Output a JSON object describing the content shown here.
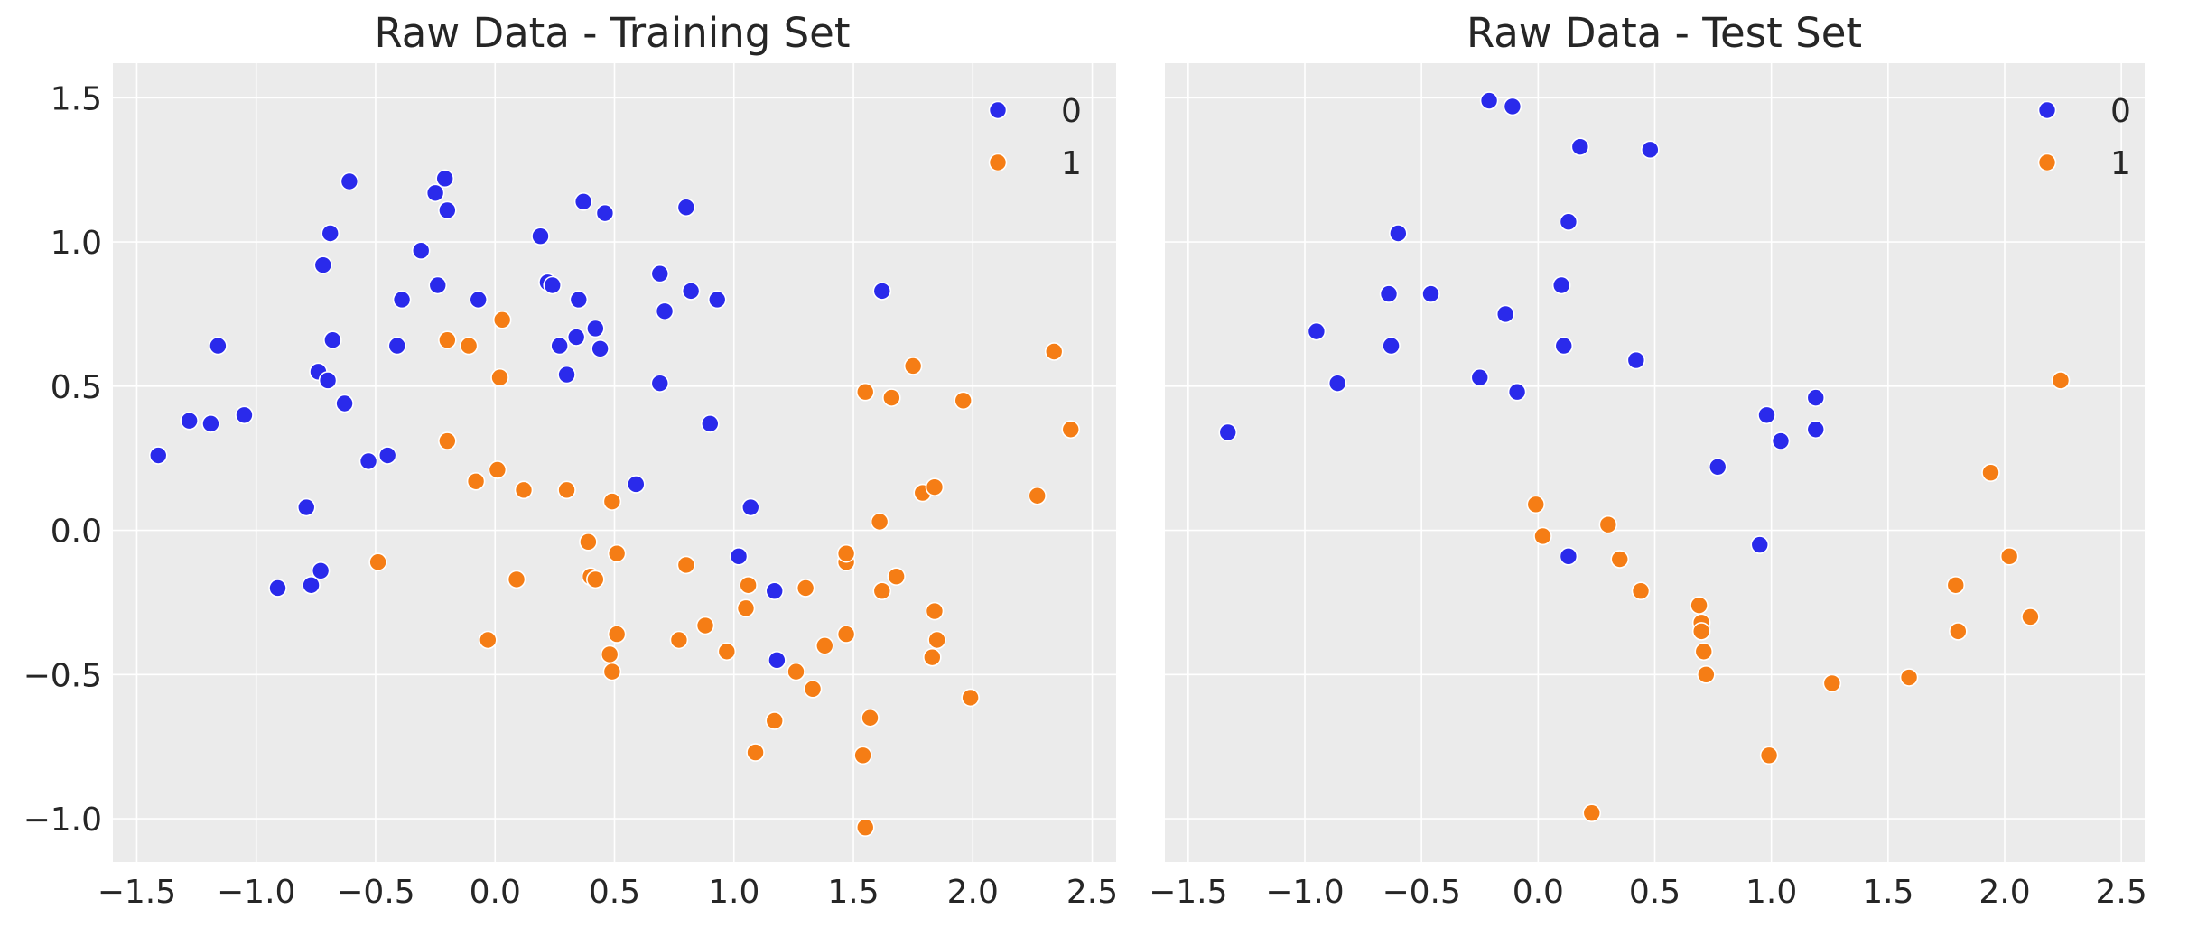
{
  "colors": {
    "plot_background": "#ebebeb",
    "grid": "#ffffff",
    "class_0": "#2a2aeb",
    "class_1": "#f57d15",
    "marker_edge": "#ffffff",
    "text": "#262626"
  },
  "chart_data": [
    {
      "type": "scatter",
      "title": "Raw Data - Training Set",
      "xlabel": "",
      "ylabel": "",
      "xlim": [
        -1.6,
        2.6
      ],
      "ylim": [
        -1.15,
        1.62
      ],
      "xticks": [
        -1.5,
        -1.0,
        -0.5,
        0.0,
        0.5,
        1.0,
        1.5,
        2.0,
        2.5
      ],
      "xtick_labels": [
        "−1.5",
        "−1.0",
        "−0.5",
        "0.0",
        "0.5",
        "1.0",
        "1.5",
        "2.0",
        "2.5"
      ],
      "yticks": [
        -1.0,
        -0.5,
        0.0,
        0.5,
        1.0,
        1.5
      ],
      "ytick_labels": [
        "−1.0",
        "−0.5",
        "0.0",
        "0.5",
        "1.0",
        "1.5"
      ],
      "grid": true,
      "legend_position": "top-right",
      "series": [
        {
          "name": "0",
          "color": "#2a2aeb",
          "points": [
            [
              -1.41,
              0.26
            ],
            [
              -1.28,
              0.38
            ],
            [
              -1.19,
              0.37
            ],
            [
              -1.16,
              0.64
            ],
            [
              -1.05,
              0.4
            ],
            [
              -0.91,
              -0.2
            ],
            [
              -0.79,
              0.08
            ],
            [
              -0.77,
              -0.19
            ],
            [
              -0.74,
              0.55
            ],
            [
              -0.73,
              -0.14
            ],
            [
              -0.72,
              0.92
            ],
            [
              -0.7,
              0.52
            ],
            [
              -0.69,
              1.03
            ],
            [
              -0.68,
              0.66
            ],
            [
              -0.63,
              0.44
            ],
            [
              -0.61,
              1.21
            ],
            [
              -0.53,
              0.24
            ],
            [
              -0.45,
              0.26
            ],
            [
              -0.41,
              0.64
            ],
            [
              -0.39,
              0.8
            ],
            [
              -0.31,
              0.97
            ],
            [
              -0.25,
              1.17
            ],
            [
              -0.24,
              0.85
            ],
            [
              -0.21,
              1.22
            ],
            [
              -0.2,
              1.11
            ],
            [
              -0.07,
              0.8
            ],
            [
              0.19,
              1.02
            ],
            [
              0.22,
              0.86
            ],
            [
              0.24,
              0.85
            ],
            [
              0.27,
              0.64
            ],
            [
              0.3,
              0.54
            ],
            [
              0.34,
              0.67
            ],
            [
              0.35,
              0.8
            ],
            [
              0.37,
              1.14
            ],
            [
              0.42,
              0.7
            ],
            [
              0.44,
              0.63
            ],
            [
              0.46,
              1.1
            ],
            [
              0.59,
              0.16
            ],
            [
              0.69,
              0.89
            ],
            [
              0.69,
              0.51
            ],
            [
              0.71,
              0.76
            ],
            [
              0.8,
              1.12
            ],
            [
              0.82,
              0.83
            ],
            [
              0.9,
              0.37
            ],
            [
              0.93,
              0.8
            ],
            [
              1.02,
              -0.09
            ],
            [
              1.07,
              0.08
            ],
            [
              1.17,
              -0.21
            ],
            [
              1.18,
              -0.45
            ],
            [
              1.62,
              0.83
            ]
          ]
        },
        {
          "name": "1",
          "color": "#f57d15",
          "points": [
            [
              -0.49,
              -0.11
            ],
            [
              -0.2,
              0.66
            ],
            [
              -0.2,
              0.31
            ],
            [
              -0.11,
              0.64
            ],
            [
              -0.08,
              0.17
            ],
            [
              -0.03,
              -0.38
            ],
            [
              0.01,
              0.21
            ],
            [
              0.02,
              0.53
            ],
            [
              0.03,
              0.73
            ],
            [
              0.09,
              -0.17
            ],
            [
              0.12,
              0.14
            ],
            [
              0.3,
              0.14
            ],
            [
              0.39,
              -0.04
            ],
            [
              0.4,
              -0.16
            ],
            [
              0.42,
              -0.17
            ],
            [
              0.48,
              -0.43
            ],
            [
              0.49,
              0.1
            ],
            [
              0.49,
              -0.49
            ],
            [
              0.51,
              -0.08
            ],
            [
              0.51,
              -0.36
            ],
            [
              0.77,
              -0.38
            ],
            [
              0.8,
              -0.12
            ],
            [
              0.88,
              -0.33
            ],
            [
              0.97,
              -0.42
            ],
            [
              1.05,
              -0.27
            ],
            [
              1.06,
              -0.19
            ],
            [
              1.09,
              -0.77
            ],
            [
              1.17,
              -0.66
            ],
            [
              1.26,
              -0.49
            ],
            [
              1.3,
              -0.2
            ],
            [
              1.33,
              -0.55
            ],
            [
              1.38,
              -0.4
            ],
            [
              1.47,
              -0.11
            ],
            [
              1.47,
              -0.08
            ],
            [
              1.47,
              -0.36
            ],
            [
              1.54,
              -0.78
            ],
            [
              1.55,
              0.48
            ],
            [
              1.55,
              -1.03
            ],
            [
              1.57,
              -0.65
            ],
            [
              1.61,
              0.03
            ],
            [
              1.62,
              -0.21
            ],
            [
              1.66,
              0.46
            ],
            [
              1.68,
              -0.16
            ],
            [
              1.75,
              0.57
            ],
            [
              1.79,
              0.13
            ],
            [
              1.83,
              -0.44
            ],
            [
              1.84,
              0.15
            ],
            [
              1.84,
              -0.28
            ],
            [
              1.85,
              -0.38
            ],
            [
              1.96,
              0.45
            ],
            [
              1.99,
              -0.58
            ],
            [
              2.27,
              0.12
            ],
            [
              2.34,
              0.62
            ],
            [
              2.41,
              0.35
            ]
          ]
        }
      ]
    },
    {
      "type": "scatter",
      "title": "Raw Data - Test Set",
      "xlabel": "",
      "ylabel": "",
      "xlim": [
        -1.6,
        2.6
      ],
      "ylim": [
        -1.15,
        1.62
      ],
      "xticks": [
        -1.5,
        -1.0,
        -0.5,
        0.0,
        0.5,
        1.0,
        1.5,
        2.0,
        2.5
      ],
      "xtick_labels": [
        "−1.5",
        "−1.0",
        "−0.5",
        "0.0",
        "0.5",
        "1.0",
        "1.5",
        "2.0",
        "2.5"
      ],
      "yticks": [
        -1.0,
        -0.5,
        0.0,
        0.5,
        1.0,
        1.5
      ],
      "ytick_labels": [],
      "grid": true,
      "legend_position": "top-right",
      "series": [
        {
          "name": "0",
          "color": "#2a2aeb",
          "points": [
            [
              -1.33,
              0.34
            ],
            [
              -0.95,
              0.69
            ],
            [
              -0.86,
              0.51
            ],
            [
              -0.64,
              0.82
            ],
            [
              -0.63,
              0.64
            ],
            [
              -0.6,
              1.03
            ],
            [
              -0.46,
              0.82
            ],
            [
              -0.25,
              0.53
            ],
            [
              -0.21,
              1.49
            ],
            [
              -0.14,
              0.75
            ],
            [
              -0.11,
              1.47
            ],
            [
              -0.09,
              0.48
            ],
            [
              0.1,
              0.85
            ],
            [
              0.11,
              0.64
            ],
            [
              0.13,
              1.07
            ],
            [
              0.13,
              -0.09
            ],
            [
              0.18,
              1.33
            ],
            [
              0.42,
              0.59
            ],
            [
              0.48,
              1.32
            ],
            [
              0.77,
              0.22
            ],
            [
              0.95,
              -0.05
            ],
            [
              0.98,
              0.4
            ],
            [
              1.04,
              0.31
            ],
            [
              1.19,
              0.46
            ],
            [
              1.19,
              0.35
            ]
          ]
        },
        {
          "name": "1",
          "color": "#f57d15",
          "points": [
            [
              -0.01,
              0.09
            ],
            [
              0.02,
              -0.02
            ],
            [
              0.23,
              -0.98
            ],
            [
              0.3,
              0.02
            ],
            [
              0.35,
              -0.1
            ],
            [
              0.44,
              -0.21
            ],
            [
              0.69,
              -0.26
            ],
            [
              0.7,
              -0.32
            ],
            [
              0.7,
              -0.35
            ],
            [
              0.71,
              -0.42
            ],
            [
              0.72,
              -0.5
            ],
            [
              0.99,
              -0.78
            ],
            [
              1.26,
              -0.53
            ],
            [
              1.59,
              -0.51
            ],
            [
              1.79,
              -0.19
            ],
            [
              1.8,
              -0.35
            ],
            [
              1.94,
              0.2
            ],
            [
              2.02,
              -0.09
            ],
            [
              2.11,
              -0.3
            ],
            [
              2.24,
              0.52
            ]
          ]
        }
      ]
    }
  ]
}
